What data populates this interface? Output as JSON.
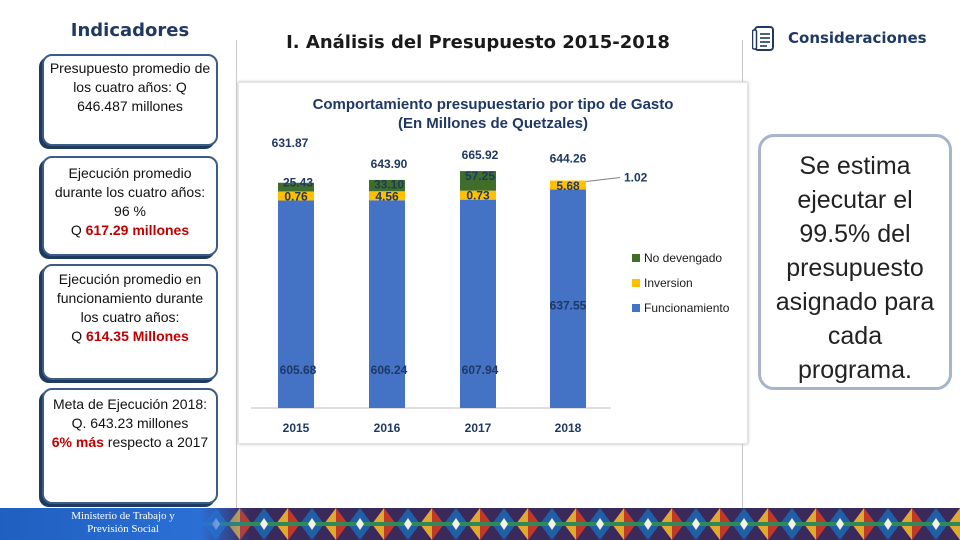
{
  "left_panel": {
    "title": "Indicadores",
    "box1": {
      "text": "Presupuesto promedio de los cuatro años: Q 646.487 millones"
    },
    "box2": {
      "text": "Ejecución promedio durante los cuatro años: 96 %",
      "prefix": "Q ",
      "highlight": "617.29 millones"
    },
    "box3": {
      "text": "Ejecución promedio en funcionamiento durante los cuatro años:",
      "prefix": "Q ",
      "highlight": "614.35 Millones"
    },
    "box4": {
      "text": "Meta de Ejecución 2018: Q. 643.23 millones",
      "highlight": "6% más",
      "suffix": " respecto a 2017"
    }
  },
  "header": {
    "title": "I. Análisis del Presupuesto 2015-2018",
    "considerations": "Consideraciones",
    "icon": "document-icon"
  },
  "considerations_text": "Se estima ejecutar el 99.5% del presupuesto asignado para cada programa.",
  "footer": {
    "line1": "Ministerio de Trabajo y",
    "line2": "Previsión Social"
  },
  "colors": {
    "funcionamiento": "#4472c4",
    "inversion": "#ffc000",
    "no_devengado": "#3f6e2a",
    "accent_red": "#c00000",
    "navy": "#1f3864"
  },
  "chart_data": {
    "type": "bar",
    "stacked": true,
    "title": "Comportamiento  presupuestario por tipo de Gasto",
    "subtitle": "(En Millones de Quetzales)",
    "categories": [
      "2015",
      "2016",
      "2017",
      "2018"
    ],
    "series": [
      {
        "name": "Funcionamiento",
        "values": [
          605.68,
          606.24,
          607.94,
          637.55
        ]
      },
      {
        "name": "Inversion",
        "values": [
          0.76,
          4.56,
          0.73,
          5.68
        ]
      },
      {
        "name": "No devengado",
        "values": [
          25.43,
          33.1,
          57.25,
          1.02
        ]
      }
    ],
    "totals": [
      631.87,
      643.9,
      665.92,
      644.26
    ],
    "legend": "right",
    "ylim": [
      0,
      680
    ]
  }
}
